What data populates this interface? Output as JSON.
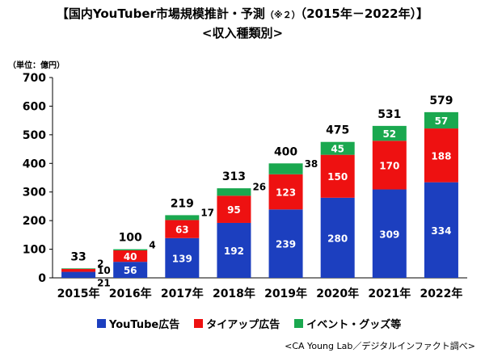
{
  "chart_data": {
    "type": "bar",
    "stacked": true,
    "title": "【国内YouTuber市場規模推計・予測",
    "title_note": "（※２）",
    "title_period": "（2015年－2022年）】",
    "subtitle": "<収入種類別>",
    "unit_label": "（単位：億円）",
    "categories": [
      "2015年",
      "2016年",
      "2017年",
      "2018年",
      "2019年",
      "2020年",
      "2021年",
      "2022年"
    ],
    "series": [
      {
        "name": "YouTube広告",
        "color": "#1c3fbf",
        "values": [
          21,
          56,
          139,
          192,
          239,
          280,
          309,
          334
        ]
      },
      {
        "name": "タイアップ広告",
        "color": "#ee1111",
        "values": [
          10,
          40,
          63,
          95,
          123,
          150,
          170,
          188
        ]
      },
      {
        "name": "イベント・グッズ等",
        "color": "#1aa84f",
        "values": [
          2,
          4,
          17,
          26,
          38,
          45,
          52,
          57
        ]
      }
    ],
    "totals": [
      33,
      100,
      219,
      313,
      400,
      475,
      531,
      579
    ],
    "ylim": [
      0,
      700
    ],
    "yticks": [
      0,
      100,
      200,
      300,
      400,
      500,
      600,
      700
    ],
    "grid": false,
    "legend_position": "bottom"
  },
  "source": "<CA Young Lab／デジタルインファクト調べ>"
}
